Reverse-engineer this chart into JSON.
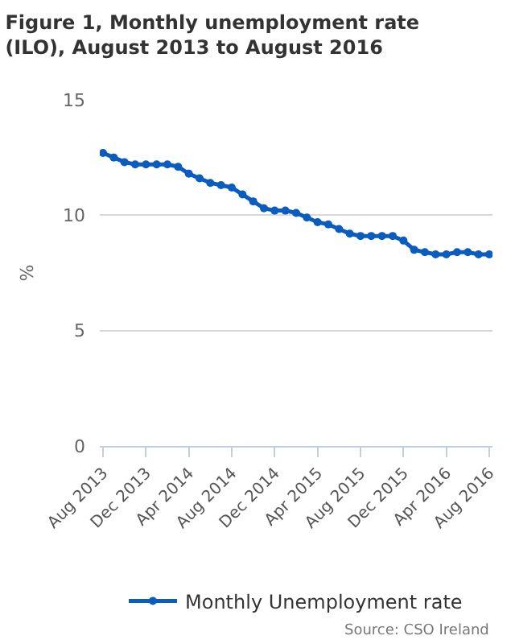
{
  "chart_data": {
    "type": "line",
    "title": "Figure 1, Monthly unemployment rate (ILO), August 2013 to August 2016",
    "ylabel": "%",
    "categories": [
      "Aug 2013",
      null,
      null,
      null,
      "Dec 2013",
      null,
      null,
      null,
      "Apr 2014",
      null,
      null,
      null,
      "Aug 2014",
      null,
      null,
      null,
      "Dec 2014",
      null,
      null,
      null,
      "Apr 2015",
      null,
      null,
      null,
      "Aug 2015",
      null,
      null,
      null,
      "Dec 2015",
      null,
      null,
      null,
      "Apr 2016",
      null,
      null,
      null,
      "Aug 2016"
    ],
    "series": [
      {
        "name": "Monthly Unemployment rate",
        "color": "#0a5cbf",
        "values": [
          12.7,
          12.5,
          12.3,
          12.2,
          12.2,
          12.2,
          12.2,
          12.1,
          11.8,
          11.6,
          11.4,
          11.3,
          11.2,
          10.9,
          10.6,
          10.3,
          10.2,
          10.2,
          10.1,
          9.9,
          9.7,
          9.6,
          9.4,
          9.2,
          9.1,
          9.1,
          9.1,
          9.1,
          8.9,
          8.5,
          8.4,
          8.3,
          8.3,
          8.4,
          8.4,
          8.3,
          8.3
        ]
      }
    ],
    "ylim": [
      0,
      15
    ],
    "yticks": [
      0,
      5,
      10,
      15
    ],
    "grid": "y",
    "legend": "bottom",
    "marker": "circle",
    "line_style": "solid",
    "annotations": [
      "Source: CSO Ireland"
    ]
  }
}
